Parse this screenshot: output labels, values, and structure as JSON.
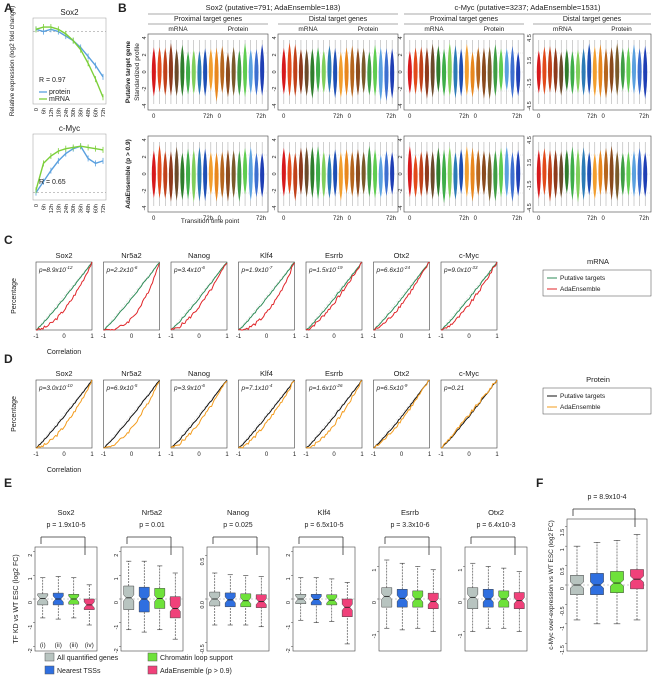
{
  "panel_letters": {
    "a": "A",
    "b": "B",
    "c": "C",
    "d": "D",
    "e": "E",
    "f": "F"
  },
  "colors": {
    "green": "#2e8b57",
    "red": "#e0262a",
    "black": "#111111",
    "orange": "#f39c1e",
    "protein_line": "#5aa0df",
    "mrna_line": "#7ccf3a",
    "box_gray": "#b8c4c0",
    "box_blue": "#2f6fe0",
    "box_green": "#6ee23a",
    "box_pink": "#f0417a"
  },
  "panelA": {
    "ylabel": "Relative expression (log2 fold change)",
    "xticks": [
      "0",
      "6h",
      "12h",
      "18h",
      "24h",
      "30h",
      "36h",
      "48h",
      "60h",
      "72h"
    ],
    "charts": [
      {
        "title": "Sox2",
        "r_text": "R = 0.97",
        "legend": [
          "protein",
          "mRNA"
        ],
        "protein": [
          0.05,
          0,
          0.05,
          0,
          -0.1,
          -0.2,
          -0.35,
          -0.55,
          -0.75,
          -1.0
        ],
        "mrna": [
          0.05,
          0.1,
          0.1,
          0.05,
          -0.05,
          -0.2,
          -0.4,
          -0.7,
          -1.05,
          -1.45
        ],
        "ylim": [
          -1.6,
          0.3
        ]
      },
      {
        "title": "c-Myc",
        "r_text": "R = 0.65",
        "protein": [
          0,
          0.45,
          0.9,
          1.3,
          1.6,
          1.8,
          1.9,
          1.4,
          1.2,
          1.3
        ],
        "mrna": [
          0.1,
          1.2,
          1.5,
          1.7,
          1.8,
          1.85,
          1.9,
          1.85,
          1.8,
          1.75
        ],
        "ylim": [
          -0.3,
          2.4
        ]
      }
    ]
  },
  "panelB": {
    "groups": [
      {
        "title": "Sox2 (putative=791; AdaEnsemble=183)",
        "subs": [
          "Proximal target genes",
          "Distal target genes"
        ]
      },
      {
        "title": "c-Myc (putative=3237; AdaEnsemble=1531)",
        "subs": [
          "Proximal target genes",
          "Distal target genes"
        ]
      }
    ],
    "mrna_label": "mRNA",
    "protein_label": "Protein",
    "row_labels": [
      "Putative target gene",
      "AdaEnsemble (p > 0.9)"
    ],
    "ylabel": "Standardized profile",
    "x_start": "0",
    "x_end": "72h",
    "xlabel": "Transition time point",
    "yticks": [
      "4",
      "2",
      "0",
      "-2",
      "-4"
    ],
    "yticks_alt": [
      "4.5",
      "1.5",
      "-1.5",
      "-4.5"
    ],
    "violin_colors": [
      "#d7191c",
      "#e34a1b",
      "#c1411a",
      "#8e3a1c",
      "#6b4a2a",
      "#2f7d2c",
      "#3fae49",
      "#7fcf5b",
      "#2c7bb6",
      "#1f4fb4"
    ],
    "violin_colors_protein": [
      "#f29e2e",
      "#e8871e",
      "#b5651d",
      "#8a4a1c",
      "#7a5a2a",
      "#3f9d44",
      "#5fcd51",
      "#5aa0df",
      "#3d6fd0",
      "#1f3fb4"
    ]
  },
  "panelC": {
    "ylabel": "Percentage",
    "xlabel": "Correlation",
    "xticks": [
      "-1",
      "0",
      "1"
    ],
    "side_label": "mRNA",
    "legend": [
      "Putative targets",
      "AdaEnsemble"
    ],
    "charts": [
      {
        "title": "Sox2",
        "p_base": "8.9x10",
        "p_exp": "-12",
        "shift": 0.35
      },
      {
        "title": "Nr5a2",
        "p_base": "2.2x10",
        "p_exp": "-6",
        "shift": 0.7
      },
      {
        "title": "Nanog",
        "p_base": "3.4x10",
        "p_exp": "-6",
        "shift": 0.25
      },
      {
        "title": "Klf4",
        "p_base": "1.9x10",
        "p_exp": "-7",
        "shift": 0.45
      },
      {
        "title": "Esrrb",
        "p_base": "1.5x10",
        "p_exp": "-19",
        "shift": 0.15
      },
      {
        "title": "Otx2",
        "p_base": "6.6x10",
        "p_exp": "-24",
        "shift": 0.18
      },
      {
        "title": "c-Myc",
        "p_base": "9.0x10",
        "p_exp": "-33",
        "shift": 0.2
      }
    ]
  },
  "panelD": {
    "ylabel": "Percentage",
    "xlabel": "Correlation",
    "xticks": [
      "-1",
      "0",
      "1"
    ],
    "side_label": "Protein",
    "legend": [
      "Putative targets",
      "AdaEnsemble"
    ],
    "charts": [
      {
        "title": "Sox2",
        "p_base": "3.0x10",
        "p_exp": "-10",
        "shift": 0.3
      },
      {
        "title": "Nr5a2",
        "p_base": "6.9x10",
        "p_exp": "-5",
        "shift": 0.35
      },
      {
        "title": "Nanog",
        "p_base": "3.9x10",
        "p_exp": "-6",
        "shift": 0.2
      },
      {
        "title": "Klf4",
        "p_base": "7.1x10",
        "p_exp": "-4",
        "shift": 0.2
      },
      {
        "title": "Esrrb",
        "p_base": "1.6x10",
        "p_exp": "-26",
        "shift": 0.25
      },
      {
        "title": "Otx2",
        "p_base": "6.5x10",
        "p_exp": "-9",
        "shift": 0.12
      },
      {
        "title": "c-Myc",
        "p_base": "p=0.21",
        "p_exp": "",
        "shift": 0.02
      }
    ]
  },
  "panelE": {
    "ylabel": "TF KD vs WT ESC (log2 FC)",
    "roman": [
      "(i)",
      "(ii)",
      "(iii)",
      "(iv)"
    ],
    "charts": [
      {
        "title": "Sox2",
        "p": "p = 1.9x10-5",
        "yticks": [
          "2",
          "1",
          "0",
          "-1",
          "-2"
        ],
        "ylim": [
          -2.2,
          2.2
        ],
        "boxes": [
          [
            -0.8,
            -0.25,
            0.02,
            0.22,
            0.9
          ],
          [
            -0.85,
            -0.25,
            0.0,
            0.25,
            0.95
          ],
          [
            -0.8,
            -0.22,
            0.0,
            0.2,
            0.9
          ],
          [
            -1.1,
            -0.45,
            -0.25,
            0.0,
            0.6
          ]
        ]
      },
      {
        "title": "Nr5a2",
        "p": "p = 0.01",
        "yticks": [
          "2",
          "1",
          "0",
          "-1",
          "-2"
        ],
        "ylim": [
          -2.2,
          2.2
        ],
        "boxes": [
          [
            -1.3,
            -0.45,
            0.05,
            0.55,
            1.6
          ],
          [
            -1.4,
            -0.55,
            0.0,
            0.5,
            1.6
          ],
          [
            -1.3,
            -0.4,
            0.02,
            0.45,
            1.4
          ],
          [
            -1.7,
            -0.8,
            -0.4,
            0.1,
            1.1
          ]
        ]
      },
      {
        "title": "Nanog",
        "p": "p = 0.025",
        "yticks": [
          "0.5",
          "0.0",
          "-0.5"
        ],
        "ylim": [
          -0.6,
          0.6
        ],
        "boxes": [
          [
            -0.3,
            -0.08,
            0.0,
            0.08,
            0.3
          ],
          [
            -0.3,
            -0.09,
            -0.01,
            0.07,
            0.28
          ],
          [
            -0.3,
            -0.09,
            -0.02,
            0.06,
            0.27
          ],
          [
            -0.32,
            -0.1,
            -0.03,
            0.05,
            0.26
          ]
        ]
      },
      {
        "title": "Klf4",
        "p": "p = 6.5x10-5",
        "yticks": [
          "2",
          "1",
          "0",
          "-1",
          "-2"
        ],
        "ylim": [
          -2.2,
          2.2
        ],
        "boxes": [
          [
            -0.9,
            -0.2,
            0.0,
            0.2,
            0.9
          ],
          [
            -1.0,
            -0.25,
            -0.02,
            0.2,
            0.9
          ],
          [
            -0.95,
            -0.25,
            -0.05,
            0.18,
            0.85
          ],
          [
            -1.9,
            -0.75,
            -0.35,
            0.0,
            0.7
          ]
        ]
      },
      {
        "title": "Esrrb",
        "p": "p = 3.3x10-6",
        "yticks": [
          "1",
          "0",
          "-1"
        ],
        "ylim": [
          -1.6,
          1.6
        ],
        "boxes": [
          [
            -0.9,
            -0.25,
            0.08,
            0.35,
            1.2
          ],
          [
            -0.95,
            -0.25,
            0.02,
            0.3,
            1.1
          ],
          [
            -0.9,
            -0.25,
            0.0,
            0.25,
            1.0
          ],
          [
            -1.0,
            -0.3,
            -0.08,
            0.18,
            0.9
          ]
        ]
      },
      {
        "title": "Otx2",
        "p": "p = 6.4x10-3",
        "yticks": [
          "1",
          "0",
          "-1"
        ],
        "ylim": [
          -1.6,
          1.6
        ],
        "boxes": [
          [
            -1.0,
            -0.3,
            0.05,
            0.35,
            1.1
          ],
          [
            -0.9,
            -0.25,
            0.0,
            0.3,
            1.0
          ],
          [
            -0.9,
            -0.25,
            0.0,
            0.25,
            0.95
          ],
          [
            -1.0,
            -0.3,
            -0.05,
            0.2,
            0.85
          ]
        ]
      }
    ]
  },
  "panelF": {
    "ylabel": "c-Myc over-expression vs WT ESC (log2 FC)",
    "p": "p = 8.9x10-4",
    "yticks": [
      "1.5",
      "1",
      "0.5",
      "0",
      "-0.5",
      "-1",
      "-1.5"
    ],
    "ylim": [
      -1.7,
      1.7
    ],
    "boxes": [
      [
        -0.9,
        -0.25,
        0.0,
        0.25,
        1.0
      ],
      [
        -1.0,
        -0.25,
        0.0,
        0.3,
        1.1
      ],
      [
        -1.0,
        -0.2,
        0.05,
        0.35,
        1.15
      ],
      [
        -0.9,
        -0.1,
        0.15,
        0.4,
        1.3
      ]
    ]
  },
  "legendE": [
    "All quantified genes",
    "Nearest TSSs",
    "Chromatin loop support",
    "AdaEnsemble (p > 0.9)"
  ]
}
